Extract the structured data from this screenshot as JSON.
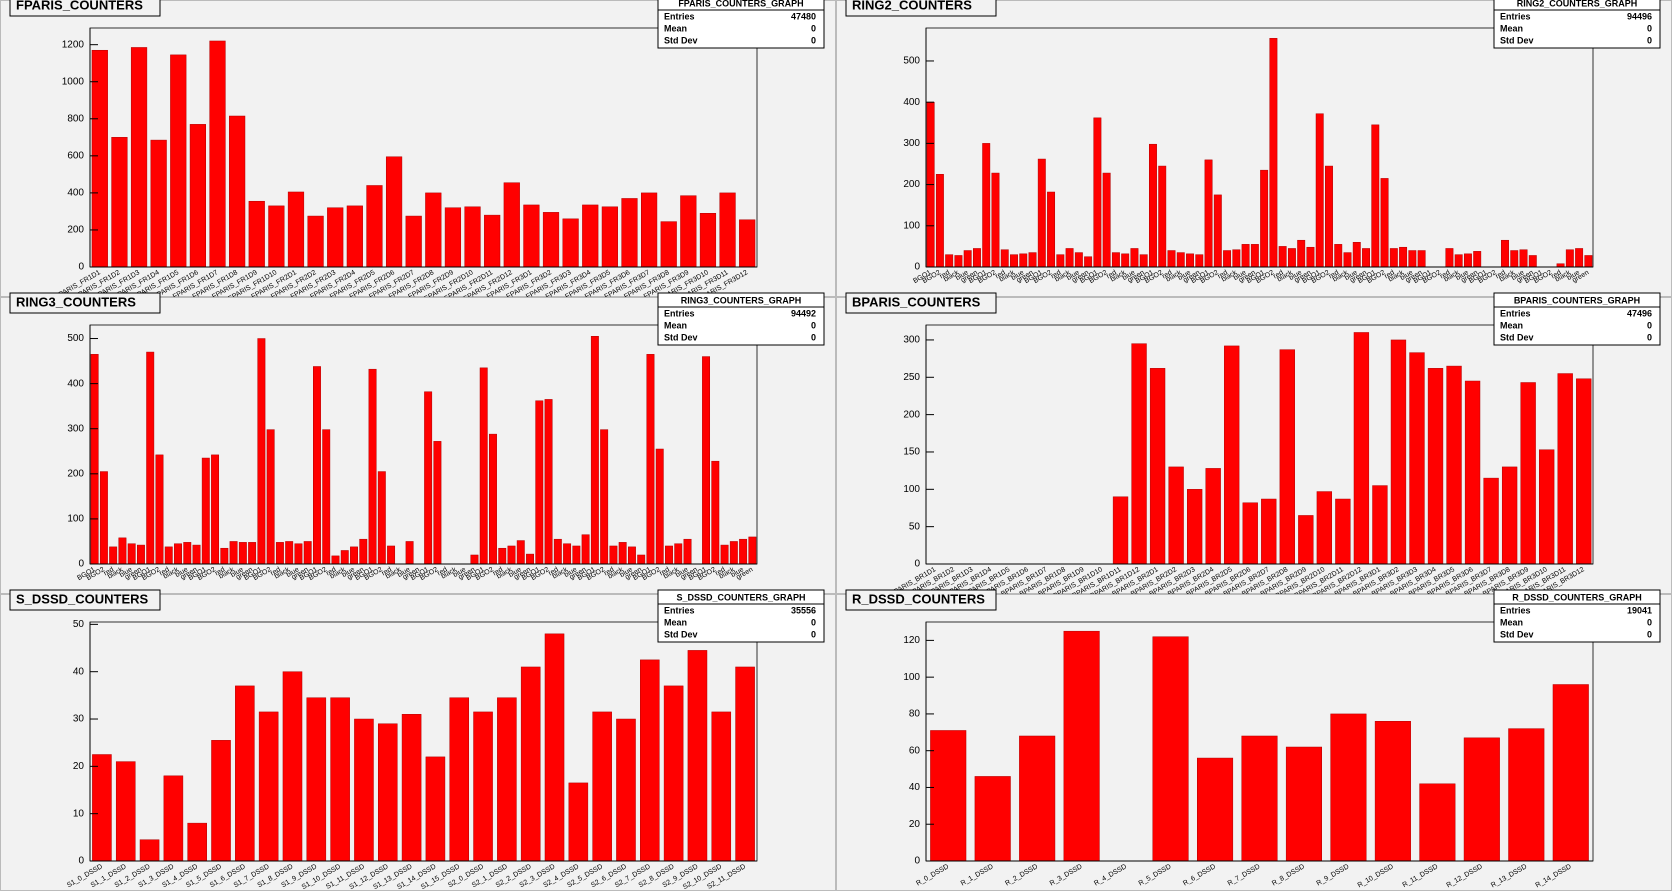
{
  "chart_data": [
    {
      "type": "bar",
      "title": "FPARIS_COUNTERS",
      "color": "#ff0000",
      "stats": {
        "name": "FPARIS_COUNTERS_GRAPH",
        "labels": [
          "Entries",
          "Mean",
          "Std Dev"
        ],
        "values": [
          47480,
          0,
          0
        ]
      },
      "categories": [
        "FPARIS_FR1D1",
        "FPARIS_FR1D2",
        "FPARIS_FR1D3",
        "FPARIS_FR1D4",
        "FPARIS_FR1D5",
        "FPARIS_FR1D6",
        "FPARIS_FR1D7",
        "FPARIS_FR1D8",
        "FPARIS_FR1D9",
        "FPARIS_FR1D10",
        "FPARIS_FR2D1",
        "FPARIS_FR2D2",
        "FPARIS_FR2D3",
        "FPARIS_FR2D4",
        "FPARIS_FR2D5",
        "FPARIS_FR2D6",
        "FPARIS_FR2D7",
        "FPARIS_FR2D8",
        "FPARIS_FR2D9",
        "FPARIS_FR2D10",
        "FPARIS_FR2D11",
        "FPARIS_FR2D12",
        "FPARIS_FR3D1",
        "FPARIS_FR3D2",
        "FPARIS_FR3D3",
        "FPARIS_FR3D4",
        "FPARIS_FR3D5",
        "FPARIS_FR3D6",
        "FPARIS_FR3D7",
        "FPARIS_FR3D8",
        "FPARIS_FR3D9",
        "FPARIS_FR3D10",
        "FPARIS_FR3D11",
        "FPARIS_FR3D12"
      ],
      "values": [
        1170,
        700,
        1185,
        685,
        1145,
        770,
        1220,
        815,
        355,
        330,
        405,
        275,
        320,
        330,
        440,
        595,
        275,
        400,
        320,
        325,
        280,
        455,
        335,
        295,
        260,
        335,
        325,
        370,
        400,
        245,
        385,
        290,
        400,
        255
      ],
      "ylim": [
        0,
        1290
      ],
      "yticks": [
        0,
        200,
        400,
        600,
        800,
        1000,
        1200
      ]
    },
    {
      "type": "bar",
      "title": "RING2_COUNTERS",
      "color": "#ff0000",
      "stats": {
        "name": "RING2_COUNTERS_GRAPH",
        "labels": [
          "Entries",
          "Mean",
          "Std Dev"
        ],
        "values": [
          94496,
          0,
          0
        ]
      },
      "categories": [
        "BGO1",
        "BGO2",
        "red",
        "black",
        "blue",
        "green",
        "BGO1",
        "BGO2",
        "red",
        "black",
        "blue",
        "green",
        "BGO1",
        "BGO2",
        "red",
        "black",
        "blue",
        "green",
        "BGO1",
        "BGO2",
        "red",
        "black",
        "blue",
        "green",
        "BGO1",
        "BGO2",
        "red",
        "black",
        "blue",
        "green",
        "BGO1",
        "BGO2",
        "red",
        "black",
        "blue",
        "green",
        "BGO1",
        "BGO2",
        "red",
        "black",
        "blue",
        "green",
        "BGO1",
        "BGO2",
        "red",
        "black",
        "blue",
        "green",
        "BGO1",
        "BGO2",
        "red",
        "black",
        "blue",
        "green",
        "BGO1",
        "BGO2",
        "red",
        "black",
        "blue",
        "green",
        "BGO1",
        "BGO2",
        "red",
        "black",
        "blue",
        "green",
        "BGO1",
        "BGO2",
        "red",
        "black",
        "blue",
        "green"
      ],
      "values": [
        400,
        225,
        30,
        28,
        40,
        45,
        300,
        228,
        42,
        30,
        32,
        35,
        262,
        182,
        30,
        45,
        35,
        25,
        362,
        228,
        35,
        32,
        45,
        30,
        298,
        245,
        40,
        35,
        32,
        30,
        260,
        175,
        40,
        42,
        55,
        55,
        235,
        555,
        50,
        45,
        65,
        48,
        372,
        245,
        55,
        35,
        60,
        45,
        345,
        215,
        45,
        48,
        40,
        40,
        0,
        0,
        45,
        30,
        32,
        38,
        0,
        0,
        65,
        40,
        42,
        28,
        0,
        0,
        8,
        42,
        45,
        28
      ],
      "ylim": [
        0,
        580
      ],
      "yticks": [
        0,
        100,
        200,
        300,
        400,
        500
      ]
    },
    {
      "type": "bar",
      "title": "RING3_COUNTERS",
      "color": "#ff0000",
      "stats": {
        "name": "RING3_COUNTERS_GRAPH",
        "labels": [
          "Entries",
          "Mean",
          "Std Dev"
        ],
        "values": [
          94492,
          0,
          0
        ]
      },
      "categories": [
        "BGO1",
        "BGO2",
        "red",
        "black",
        "blue",
        "green",
        "BGO1",
        "BGO2",
        "red",
        "black",
        "blue",
        "green",
        "BGO1",
        "BGO2",
        "red",
        "black",
        "blue",
        "green",
        "BGO1",
        "BGO2",
        "red",
        "black",
        "blue",
        "green",
        "BGO1",
        "BGO2",
        "red",
        "black",
        "blue",
        "green",
        "BGO1",
        "BGO2",
        "red",
        "black",
        "blue",
        "green",
        "BGO1",
        "BGO2",
        "red",
        "black",
        "blue",
        "green",
        "BGO1",
        "BGO2",
        "red",
        "black",
        "blue",
        "green",
        "BGO1",
        "BGO2",
        "red",
        "black",
        "blue",
        "green",
        "BGO1",
        "BGO2",
        "red",
        "black",
        "blue",
        "green",
        "BGO1",
        "BGO2",
        "red",
        "black",
        "blue",
        "green",
        "BGO1",
        "BGO2",
        "red",
        "black",
        "blue",
        "green"
      ],
      "values": [
        465,
        205,
        38,
        58,
        45,
        42,
        470,
        242,
        38,
        45,
        48,
        42,
        235,
        242,
        35,
        50,
        48,
        48,
        500,
        298,
        48,
        50,
        45,
        50,
        438,
        298,
        18,
        30,
        38,
        55,
        432,
        205,
        40,
        0,
        50,
        0,
        382,
        272,
        0,
        0,
        0,
        20,
        435,
        288,
        35,
        40,
        52,
        22,
        362,
        365,
        55,
        45,
        40,
        65,
        505,
        298,
        40,
        48,
        38,
        20,
        465,
        255,
        40,
        45,
        55,
        0,
        460,
        228,
        42,
        50,
        55,
        60
      ],
      "ylim": [
        0,
        530
      ],
      "yticks": [
        0,
        100,
        200,
        300,
        400,
        500
      ]
    },
    {
      "type": "bar",
      "title": "BPARIS_COUNTERS",
      "color": "#ff0000",
      "stats": {
        "name": "BPARIS_COUNTERS_GRAPH",
        "labels": [
          "Entries",
          "Mean",
          "Std Dev"
        ],
        "values": [
          47496,
          0,
          0
        ]
      },
      "categories": [
        "BPARIS_BR1D1",
        "BPARIS_BR1D2",
        "BPARIS_BR1D3",
        "BPARIS_BR1D4",
        "BPARIS_BR1D5",
        "BPARIS_BR1D6",
        "BPARIS_BR1D7",
        "BPARIS_BR1D8",
        "BPARIS_BR1D9",
        "BPARIS_BR1D10",
        "BPARIS_BR1D11",
        "BPARIS_BR1D12",
        "BPARIS_BR2D1",
        "BPARIS_BR2D2",
        "BPARIS_BR2D3",
        "BPARIS_BR2D4",
        "BPARIS_BR2D5",
        "BPARIS_BR2D6",
        "BPARIS_BR2D7",
        "BPARIS_BR2D8",
        "BPARIS_BR2D9",
        "BPARIS_BR2D10",
        "BPARIS_BR2D11",
        "BPARIS_BR2D12",
        "BPARIS_BR3D1",
        "BPARIS_BR3D2",
        "BPARIS_BR3D3",
        "BPARIS_BR3D4",
        "BPARIS_BR3D5",
        "BPARIS_BR3D6",
        "BPARIS_BR3D7",
        "BPARIS_BR3D8",
        "BPARIS_BR3D9",
        "BPARIS_BR3D10",
        "BPARIS_BR3D11",
        "BPARIS_BR3D12"
      ],
      "values": [
        0,
        0,
        0,
        0,
        0,
        0,
        0,
        0,
        0,
        0,
        90,
        295,
        262,
        130,
        100,
        128,
        292,
        82,
        87,
        287,
        65,
        97,
        87,
        310,
        105,
        300,
        283,
        262,
        265,
        245,
        115,
        130,
        243,
        153,
        255,
        248
      ],
      "ylim": [
        0,
        320
      ],
      "yticks": [
        0,
        50,
        100,
        150,
        200,
        250,
        300
      ]
    },
    {
      "type": "bar",
      "title": "S_DSSD_COUNTERS",
      "color": "#ff0000",
      "stats": {
        "name": "S_DSSD_COUNTERS_GRAPH",
        "labels": [
          "Entries",
          "Mean",
          "Std Dev"
        ],
        "values": [
          35556,
          0,
          0
        ]
      },
      "categories": [
        "S1_0_DSSD",
        "S1_1_DSSD",
        "S1_2_DSSD",
        "S1_3_DSSD",
        "S1_4_DSSD",
        "S1_5_DSSD",
        "S1_6_DSSD",
        "S1_7_DSSD",
        "S1_8_DSSD",
        "S1_9_DSSD",
        "S1_10_DSSD",
        "S1_11_DSSD",
        "S1_12_DSSD",
        "S1_13_DSSD",
        "S1_14_DSSD",
        "S1_15_DSSD",
        "S2_0_DSSD",
        "S2_1_DSSD",
        "S2_2_DSSD",
        "S2_3_DSSD",
        "S2_4_DSSD",
        "S2_5_DSSD",
        "S2_6_DSSD",
        "S2_7_DSSD",
        "S2_8_DSSD",
        "S2_9_DSSD",
        "S2_10_DSSD",
        "S2_11_DSSD"
      ],
      "values": [
        22.5,
        21,
        4.5,
        18,
        8,
        25.5,
        37,
        31.5,
        40,
        34.5,
        34.5,
        30,
        29,
        31,
        22,
        34.5,
        31.5,
        34.5,
        41,
        48,
        16.5,
        31.5,
        30,
        42.5,
        37,
        44.5,
        31.5,
        41
      ],
      "ylim": [
        0,
        50.5
      ],
      "yticks": [
        0,
        10,
        20,
        30,
        40,
        50
      ]
    },
    {
      "type": "bar",
      "title": "R_DSSD_COUNTERS",
      "color": "#ff0000",
      "stats": {
        "name": "R_DSSD_COUNTERS_GRAPH",
        "labels": [
          "Entries",
          "Mean",
          "Std Dev"
        ],
        "values": [
          19041,
          0,
          0
        ]
      },
      "categories": [
        "R_0_DSSD",
        "R_1_DSSD",
        "R_2_DSSD",
        "R_3_DSSD",
        "R_4_DSSD",
        "R_5_DSSD",
        "R_6_DSSD",
        "R_7_DSSD",
        "R_8_DSSD",
        "R_9_DSSD",
        "R_10_DSSD",
        "R_11_DSSD",
        "R_12_DSSD",
        "R_13_DSSD",
        "R_14_DSSD"
      ],
      "values": [
        71,
        46,
        68,
        125,
        0,
        122,
        56,
        68,
        62,
        80,
        76,
        42,
        67,
        72,
        96
      ],
      "ylim": [
        0,
        130
      ],
      "yticks": [
        0,
        20,
        40,
        60,
        80,
        100,
        120
      ]
    }
  ]
}
